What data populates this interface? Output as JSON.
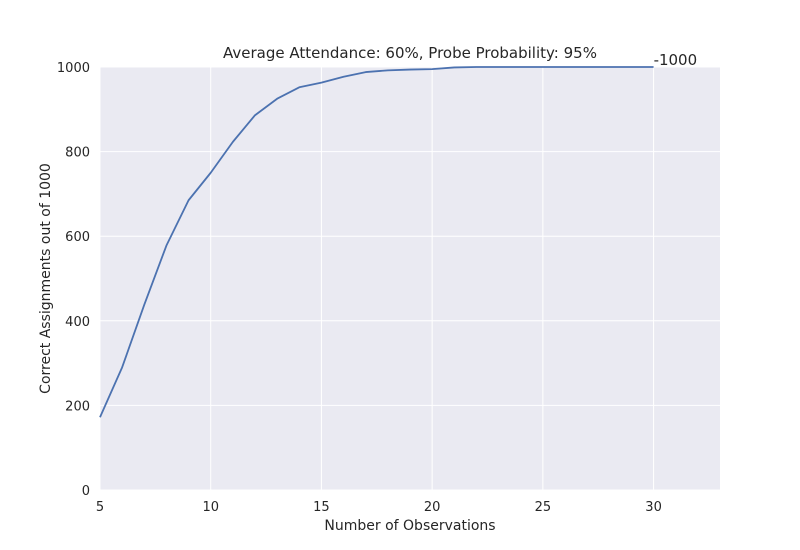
{
  "chart_data": {
    "type": "line",
    "title": "Average Attendance: 60%, Probe Probability: 95%",
    "xlabel": "Number of Observations",
    "ylabel": "Correct Assignments out of 1000",
    "xlim": [
      5,
      33
    ],
    "ylim": [
      0,
      1000
    ],
    "xticks": [
      5,
      10,
      15,
      20,
      25,
      30
    ],
    "yticks": [
      0,
      200,
      400,
      600,
      800,
      1000
    ],
    "grid": true,
    "background": "#eaeaf2",
    "line_color": "#4c72b0",
    "annotation": {
      "text": "-1000",
      "x": 30,
      "y": 1000
    },
    "series": [
      {
        "x": [
          5,
          6,
          7,
          8,
          9,
          10,
          11,
          12,
          13,
          14,
          15,
          16,
          17,
          18,
          19,
          20,
          21,
          22,
          23,
          24,
          25,
          26,
          27,
          28,
          29,
          30
        ],
        "y": [
          172,
          290,
          438,
          578,
          685,
          750,
          823,
          886,
          925,
          952,
          963,
          977,
          988,
          992,
          994,
          995,
          999,
          1000,
          1000,
          1000,
          1000,
          1000,
          1000,
          1000,
          1000,
          1000
        ]
      }
    ]
  }
}
